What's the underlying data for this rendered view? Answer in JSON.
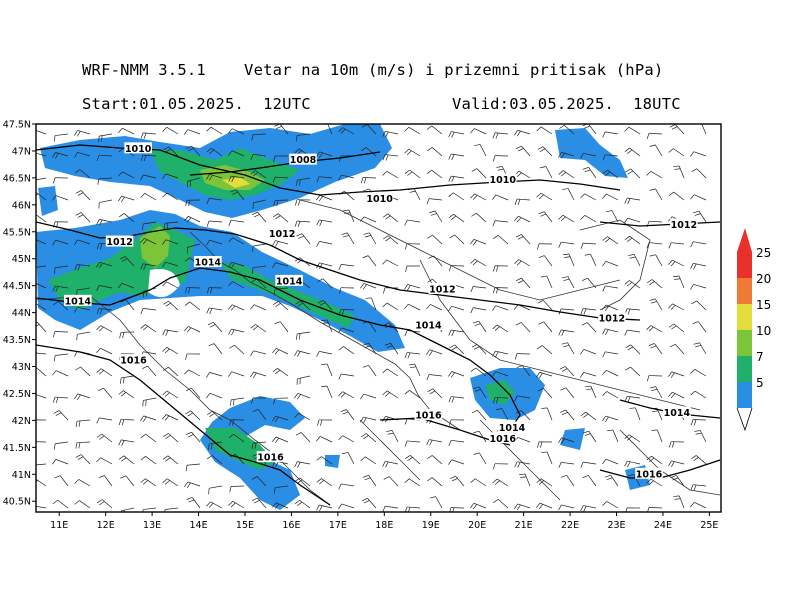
{
  "header": {
    "title": "WRF-NMM 3.5.1    Vetar na 10m (m/s) i prizemni pritisak (hPa)",
    "start": "Start:01.05.2025.  12UTC",
    "valid": "Valid:03.05.2025.  18UTC"
  },
  "axes": {
    "lon_labels": [
      "11E",
      "12E",
      "13E",
      "14E",
      "15E",
      "16E",
      "17E",
      "18E",
      "19E",
      "20E",
      "21E",
      "22E",
      "23E",
      "24E",
      "25E"
    ],
    "lat_labels": [
      "47.5N",
      "47N",
      "46.5N",
      "46N",
      "45.5N",
      "45N",
      "44.5N",
      "44N",
      "43.5N",
      "43N",
      "42.5N",
      "42N",
      "41.5N",
      "41N",
      "40.5N"
    ]
  },
  "legend": {
    "labels": [
      "25",
      "20",
      "15",
      "10",
      "7",
      "5"
    ],
    "colors": [
      "#e8312b",
      "#ef7a33",
      "#e3dc3d",
      "#7cc53a",
      "#1fb06a",
      "#2a8ee5"
    ]
  },
  "isobars": [
    {
      "label": "1010",
      "lon": 12.7,
      "lat": 47.03
    },
    {
      "label": "1008",
      "lon": 16.25,
      "lat": 46.82
    },
    {
      "label": "1010",
      "lon": 17.9,
      "lat": 46.1
    },
    {
      "label": "1010",
      "lon": 20.55,
      "lat": 46.45
    },
    {
      "label": "1012",
      "lon": 12.3,
      "lat": 45.3
    },
    {
      "label": "1012",
      "lon": 15.8,
      "lat": 45.45
    },
    {
      "label": "1012",
      "lon": 24.45,
      "lat": 45.62
    },
    {
      "label": "1014",
      "lon": 14.2,
      "lat": 44.92
    },
    {
      "label": "1014",
      "lon": 15.95,
      "lat": 44.57
    },
    {
      "label": "1014",
      "lon": 11.4,
      "lat": 44.2
    },
    {
      "label": "1012",
      "lon": 19.25,
      "lat": 44.42
    },
    {
      "label": "1014",
      "lon": 18.95,
      "lat": 43.75
    },
    {
      "label": "1012",
      "lon": 22.9,
      "lat": 43.88
    },
    {
      "label": "1016",
      "lon": 12.6,
      "lat": 43.1
    },
    {
      "label": "1016",
      "lon": 18.95,
      "lat": 42.08
    },
    {
      "label": "1014",
      "lon": 20.75,
      "lat": 41.85
    },
    {
      "label": "1016",
      "lon": 20.55,
      "lat": 41.65
    },
    {
      "label": "1014",
      "lon": 24.3,
      "lat": 42.13
    },
    {
      "label": "1016",
      "lon": 15.55,
      "lat": 41.3
    },
    {
      "label": "1016",
      "lon": 23.7,
      "lat": 40.99
    }
  ]
}
